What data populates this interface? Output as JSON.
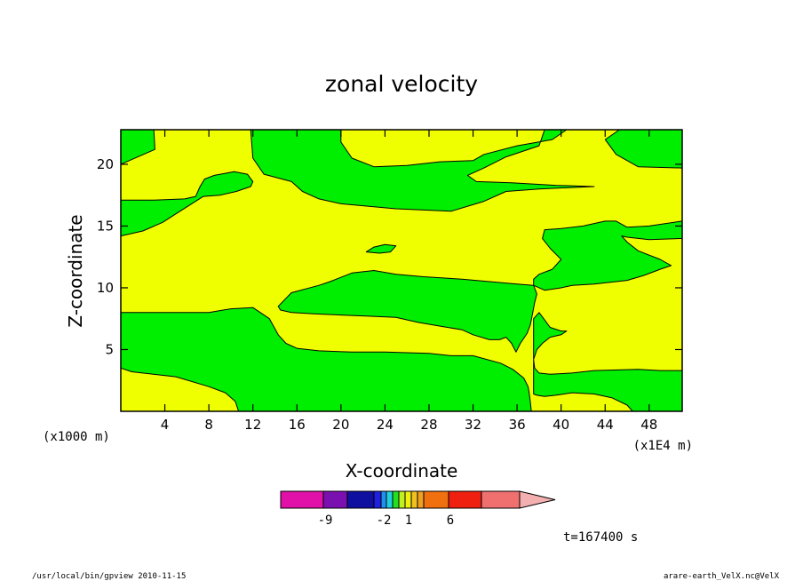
{
  "chart_data": {
    "type": "heatmap",
    "title": "zonal velocity",
    "xlabel": "X-coordinate",
    "ylabel": "Z-coordinate",
    "x_unit_left": "(x1000 m)",
    "x_unit_right": "(x1E4 m)",
    "xlim": [
      0,
      51
    ],
    "ylim": [
      0,
      22.8
    ],
    "x_ticks": [
      4,
      8,
      12,
      16,
      20,
      24,
      28,
      32,
      36,
      40,
      44,
      48
    ],
    "y_ticks": [
      5,
      10,
      15,
      20
    ],
    "time_label": "t=167400 s",
    "colorbar": {
      "colors": [
        "#e010a8",
        "#7a10b0",
        "#1010a0",
        "#2020e0",
        "#2090f0",
        "#20d0e0",
        "#20e020",
        "#c0f020",
        "#f0f010",
        "#f0c020",
        "#f0a020",
        "#f07010",
        "#f02010",
        "#f07070",
        "#f4b0b0"
      ],
      "labels": [
        "-9",
        "-2",
        "1",
        "6"
      ]
    },
    "field": {
      "colors": {
        "green": "#00ee00",
        "yellow": "#f0ff00"
      },
      "regions": [
        {
          "id": "top-left-green",
          "color": "green",
          "pts": [
            [
              0,
              22.8
            ],
            [
              3,
              22.8
            ],
            [
              3.1,
              21.2
            ],
            [
              0,
              20
            ]
          ]
        },
        {
          "id": "top-center-green",
          "color": "green",
          "pts": [
            [
              11.8,
              22.8
            ],
            [
              20,
              22.8
            ],
            [
              20,
              21.8
            ],
            [
              21,
              20.5
            ],
            [
              23,
              19.8
            ],
            [
              26,
              19.9
            ],
            [
              29,
              20.2
            ],
            [
              32,
              20.3
            ],
            [
              33,
              20.8
            ],
            [
              36,
              21.5
            ],
            [
              39.2,
              22
            ],
            [
              40.5,
              22.8
            ],
            [
              45.3,
              22.8
            ],
            [
              44,
              22
            ],
            [
              45,
              20.8
            ],
            [
              47,
              19.8
            ],
            [
              51,
              19.7
            ],
            [
              51,
              22.8
            ],
            [
              38.5,
              22.8
            ],
            [
              38,
              21.5
            ],
            [
              35,
              20.6
            ],
            [
              33,
              19.7
            ],
            [
              31.5,
              19.1
            ],
            [
              32.3,
              18.6
            ],
            [
              35.5,
              18.5
            ],
            [
              39.5,
              18.3
            ],
            [
              43,
              18.2
            ],
            [
              38,
              18
            ],
            [
              35,
              17.8
            ],
            [
              33,
              17
            ],
            [
              30,
              16.2
            ],
            [
              25,
              16.4
            ],
            [
              20,
              16.8
            ],
            [
              18,
              17.2
            ],
            [
              16.5,
              17.8
            ],
            [
              15.5,
              18.6
            ],
            [
              13,
              19.2
            ],
            [
              12,
              20.5
            ]
          ]
        },
        {
          "id": "upper-left-green",
          "color": "green",
          "pts": [
            [
              0,
              17.1
            ],
            [
              3,
              17.1
            ],
            [
              5.8,
              17.2
            ],
            [
              6.8,
              17.4
            ],
            [
              7.2,
              18.2
            ],
            [
              7.6,
              18.8
            ],
            [
              8.5,
              19.1
            ],
            [
              10.3,
              19.4
            ],
            [
              11.5,
              19.2
            ],
            [
              12,
              18.6
            ],
            [
              11.8,
              18.2
            ],
            [
              10.5,
              17.8
            ],
            [
              9,
              17.5
            ],
            [
              7.5,
              17.4
            ],
            [
              5.2,
              16.1
            ],
            [
              3.8,
              15.3
            ],
            [
              2,
              14.6
            ],
            [
              0,
              14.2
            ]
          ]
        },
        {
          "id": "middle-green",
          "color": "green",
          "pts": [
            [
              14.3,
              8.5
            ],
            [
              15.5,
              9.6
            ],
            [
              18,
              10.2
            ],
            [
              19,
              10.5
            ],
            [
              21,
              11.2
            ],
            [
              23,
              11.4
            ],
            [
              25,
              11.1
            ],
            [
              27.5,
              10.9
            ],
            [
              31,
              10.7
            ],
            [
              36,
              10.3
            ],
            [
              37.5,
              10.2
            ],
            [
              37.8,
              9.5
            ],
            [
              37.6,
              8.8
            ],
            [
              37.4,
              7.9
            ],
            [
              37.2,
              7
            ],
            [
              36.9,
              6.3
            ],
            [
              36.3,
              5.5
            ],
            [
              35.9,
              4.8
            ],
            [
              35.5,
              5.5
            ],
            [
              35,
              6
            ],
            [
              34.4,
              5.8
            ],
            [
              33.5,
              5.8
            ],
            [
              32,
              6.2
            ],
            [
              31,
              6.6
            ],
            [
              29,
              6.9
            ],
            [
              27,
              7.2
            ],
            [
              25,
              7.6
            ],
            [
              22.5,
              7.7
            ],
            [
              20,
              7.8
            ],
            [
              17.5,
              7.9
            ],
            [
              15.5,
              8
            ],
            [
              14.5,
              8.2
            ]
          ]
        },
        {
          "id": "lower-green-band",
          "color": "green",
          "pts": [
            [
              0,
              8
            ],
            [
              4,
              8
            ],
            [
              8,
              8
            ],
            [
              10,
              8.3
            ],
            [
              12,
              8.4
            ],
            [
              13.5,
              7.5
            ],
            [
              14.3,
              6.2
            ],
            [
              15,
              5.5
            ],
            [
              16,
              5.1
            ],
            [
              18,
              4.9
            ],
            [
              21,
              4.8
            ],
            [
              24,
              4.8
            ],
            [
              28,
              4.7
            ],
            [
              30,
              4.5
            ],
            [
              32,
              4.5
            ],
            [
              34.5,
              3.9
            ],
            [
              35.6,
              3.4
            ],
            [
              36.6,
              2.7
            ],
            [
              37,
              2
            ],
            [
              37.1,
              1.5
            ],
            [
              37.2,
              0.8
            ],
            [
              37.3,
              0
            ],
            [
              10.7,
              0
            ],
            [
              10.4,
              0.8
            ],
            [
              9.5,
              1.5
            ],
            [
              8,
              2
            ],
            [
              5,
              2.8
            ],
            [
              1,
              3.2
            ],
            [
              0,
              3.5
            ]
          ]
        },
        {
          "id": "right-green",
          "color": "green",
          "pts": [
            [
              37.5,
              10.2
            ],
            [
              38.5,
              9.8
            ],
            [
              40,
              10
            ],
            [
              41,
              10.2
            ],
            [
              43,
              10.3
            ],
            [
              46,
              10.6
            ],
            [
              47.5,
              11
            ],
            [
              49,
              11.5
            ],
            [
              50,
              11.8
            ],
            [
              49,
              12.3
            ],
            [
              47,
              13
            ],
            [
              46,
              13.7
            ],
            [
              45.5,
              14.2
            ],
            [
              46,
              14.1
            ],
            [
              48,
              13.9
            ],
            [
              51,
              14
            ],
            [
              51,
              15.4
            ],
            [
              48,
              15
            ],
            [
              46,
              14.9
            ],
            [
              45,
              15.4
            ],
            [
              44,
              15.4
            ],
            [
              42,
              15
            ],
            [
              40,
              14.8
            ],
            [
              38.5,
              14.7
            ],
            [
              38.3,
              14
            ],
            [
              39,
              13.2
            ],
            [
              40,
              12.3
            ],
            [
              39.2,
              11.5
            ],
            [
              38,
              11.1
            ],
            [
              37.5,
              10.7
            ]
          ]
        },
        {
          "id": "right-lower-green",
          "color": "green",
          "pts": [
            [
              37.5,
              7.5
            ],
            [
              38,
              8
            ],
            [
              38.5,
              7.4
            ],
            [
              39,
              6.8
            ],
            [
              40,
              6.5
            ],
            [
              40.5,
              6.5
            ],
            [
              40,
              6.2
            ],
            [
              39,
              6
            ],
            [
              38.3,
              5.5
            ],
            [
              37.8,
              5
            ],
            [
              37.5,
              4.2
            ],
            [
              37.6,
              3.5
            ],
            [
              38,
              3.1
            ],
            [
              39,
              3
            ],
            [
              41,
              3.1
            ],
            [
              43,
              3.3
            ],
            [
              47,
              3.4
            ],
            [
              49,
              3.3
            ],
            [
              51,
              3.3
            ],
            [
              51,
              0
            ],
            [
              46.5,
              0
            ],
            [
              46,
              0.5
            ],
            [
              44.6,
              1.1
            ],
            [
              43,
              1.4
            ],
            [
              41,
              1.5
            ],
            [
              39.5,
              1.3
            ],
            [
              38.5,
              1.2
            ],
            [
              37.8,
              1.3
            ],
            [
              37.5,
              1.4
            ]
          ]
        },
        {
          "id": "small-blob",
          "color": "green",
          "pts": [
            [
              22.3,
              12.9
            ],
            [
              23,
              13.3
            ],
            [
              24,
              13.5
            ],
            [
              25,
              13.4
            ],
            [
              24.5,
              12.9
            ],
            [
              23.5,
              12.8
            ]
          ]
        }
      ]
    }
  },
  "footer": {
    "left": "/usr/local/bin/gpview  2010-11-15",
    "right": "arare-earth_VelX.nc@VelX"
  }
}
